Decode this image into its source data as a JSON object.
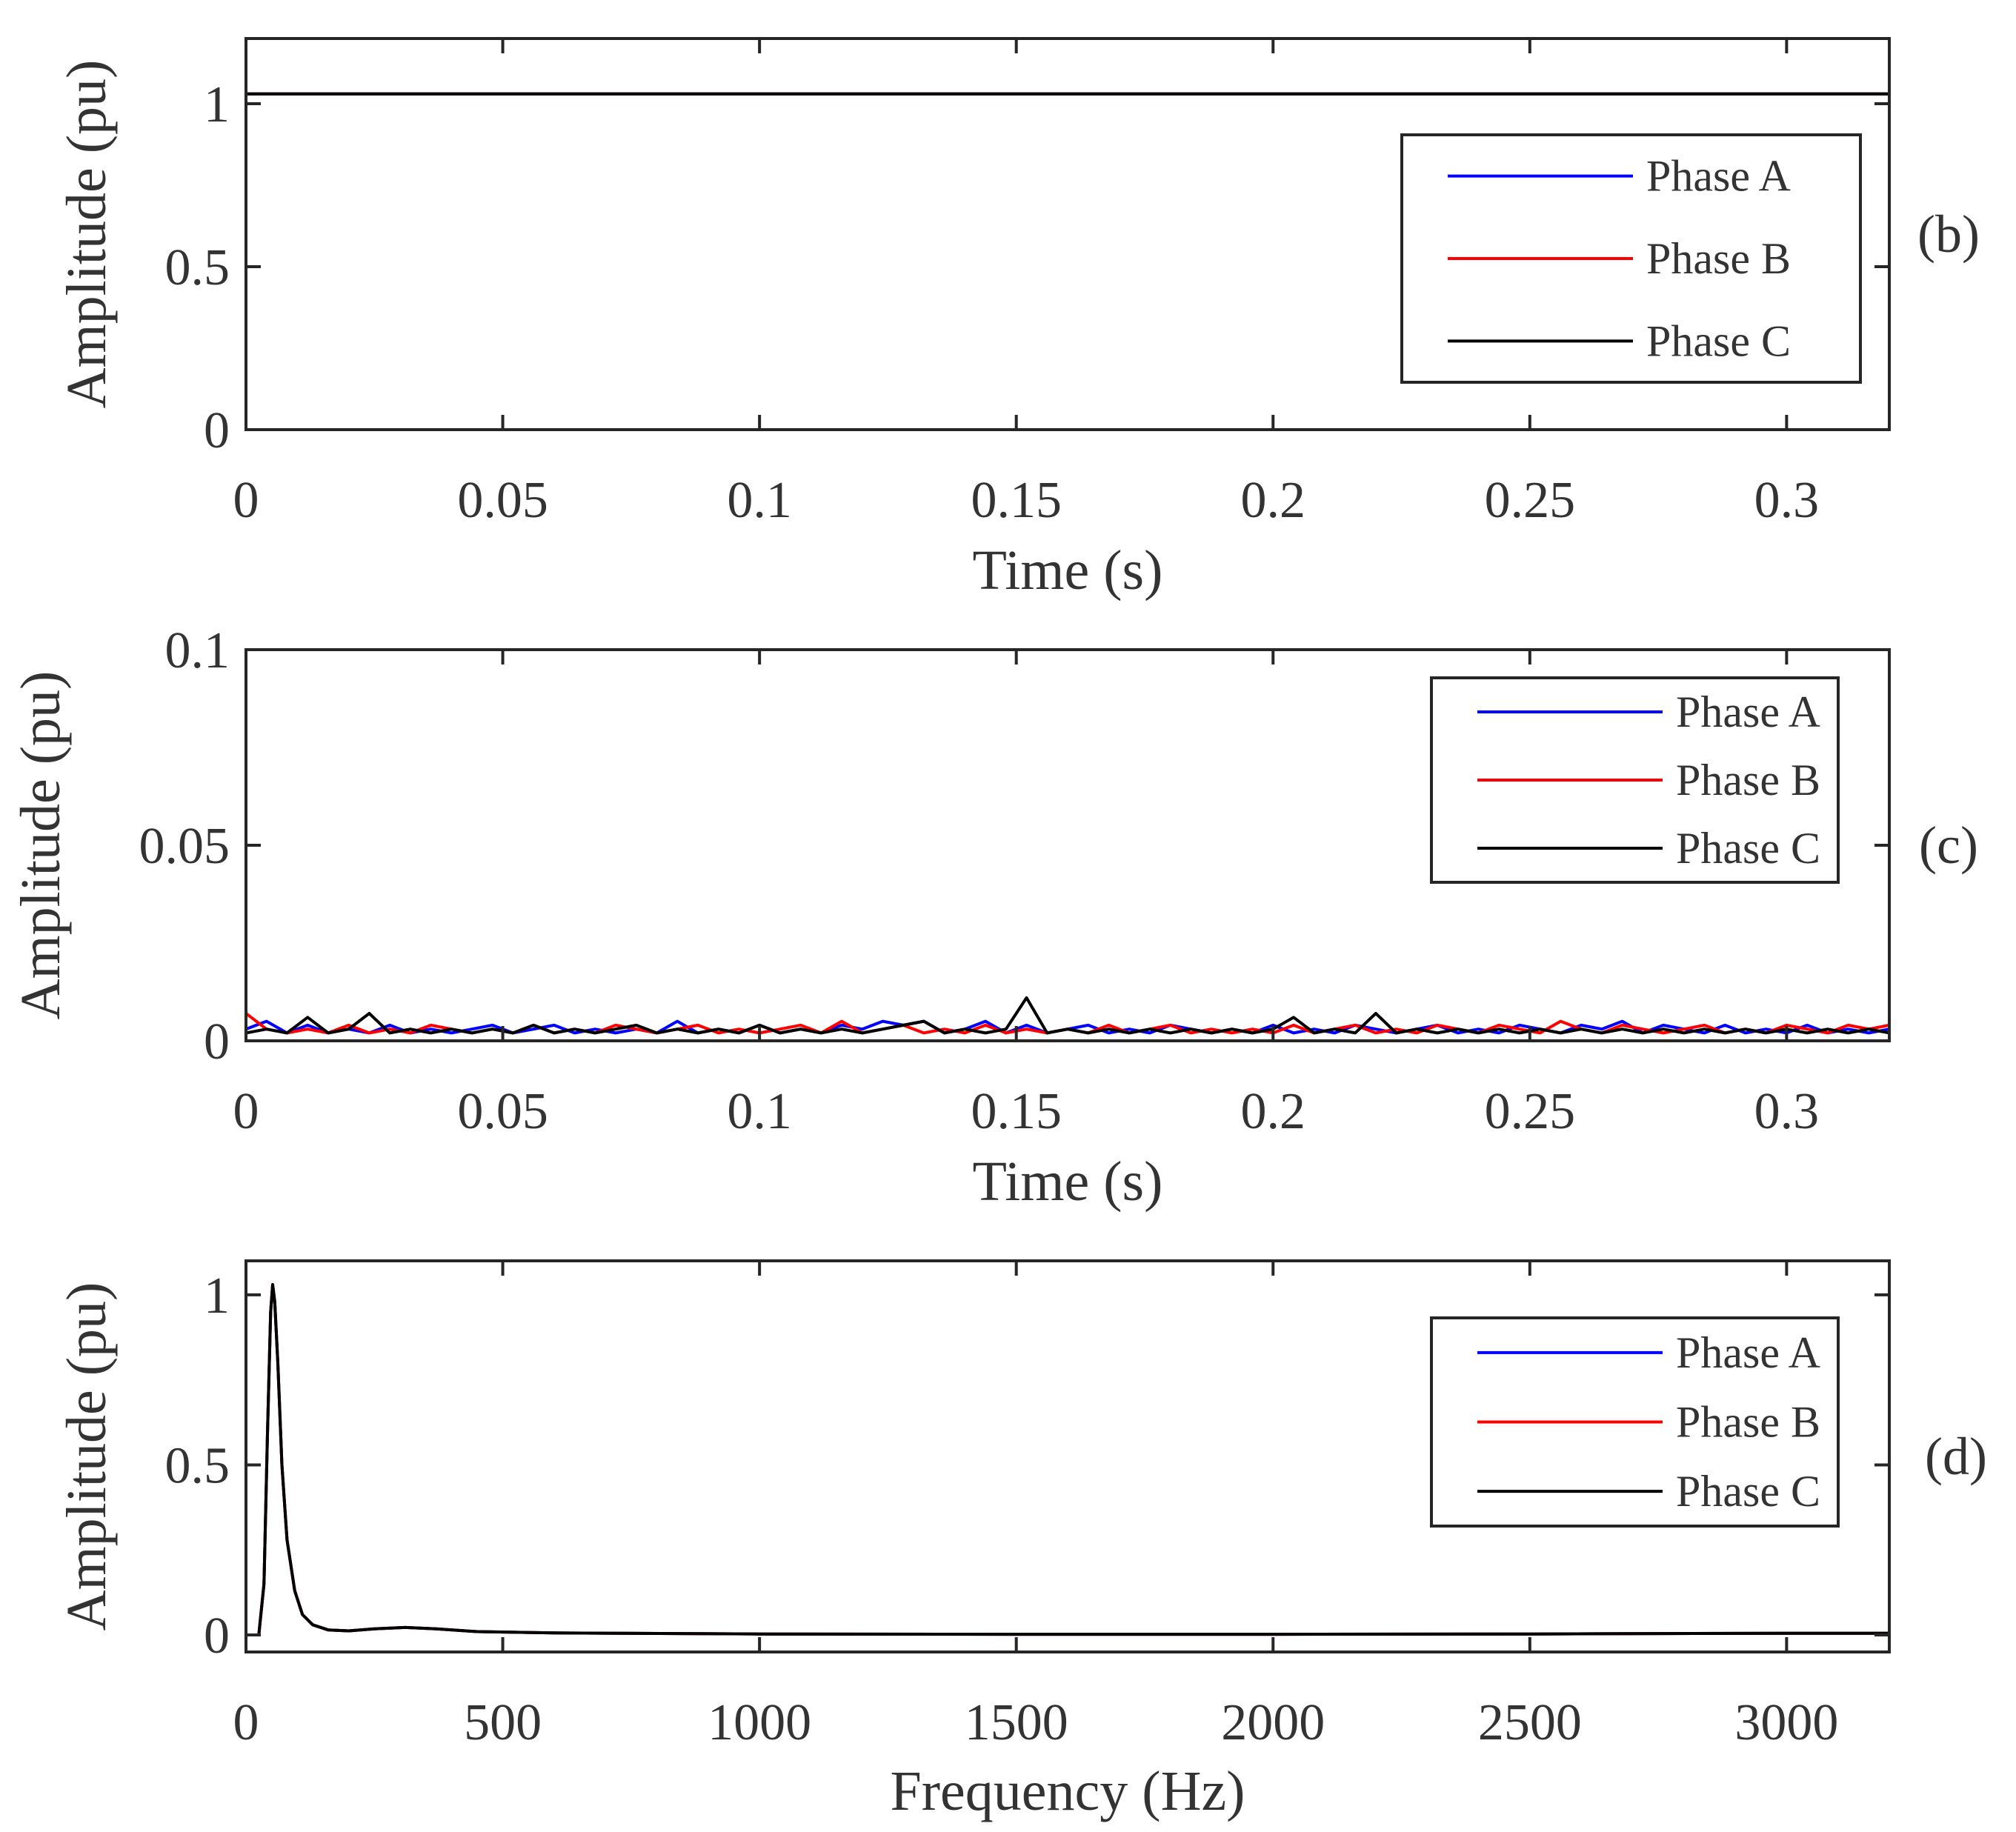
{
  "chart_data": [
    {
      "id": "b",
      "type": "line",
      "panel_label": "(b)",
      "xlabel": "Time (s)",
      "ylabel": "Amplitude (pu)",
      "xlim": [
        0,
        0.32
      ],
      "ylim": [
        0,
        1.2
      ],
      "xticks": [
        0,
        0.05,
        0.1,
        0.15,
        0.2,
        0.25,
        0.3
      ],
      "xtick_labels": [
        "0",
        "0.05",
        "0.1",
        "0.15",
        "0.2",
        "0.25",
        "0.3"
      ],
      "yticks": [
        0,
        0.5,
        1
      ],
      "ytick_labels": [
        "0",
        "0.5",
        "1"
      ],
      "legend_position": "right",
      "series": [
        {
          "name": "Phase A",
          "color": "#0000ff",
          "x": [
            0,
            0.32
          ],
          "values": [
            1.03,
            1.03
          ]
        },
        {
          "name": "Phase B",
          "color": "#ff0000",
          "x": [
            0,
            0.32
          ],
          "values": [
            1.03,
            1.03
          ]
        },
        {
          "name": "Phase C",
          "color": "#000000",
          "x": [
            0,
            0.32
          ],
          "values": [
            1.03,
            1.03
          ]
        }
      ]
    },
    {
      "id": "c",
      "type": "line",
      "panel_label": "(c)",
      "xlabel": "Time (s)",
      "ylabel": "Amplitude (pu)",
      "xlim": [
        0,
        0.32
      ],
      "ylim": [
        0,
        0.1
      ],
      "xticks": [
        0,
        0.05,
        0.1,
        0.15,
        0.2,
        0.25,
        0.3
      ],
      "xtick_labels": [
        "0",
        "0.05",
        "0.1",
        "0.15",
        "0.2",
        "0.25",
        "0.3"
      ],
      "yticks": [
        0,
        0.05,
        0.1
      ],
      "ytick_labels": [
        "0",
        "0.05",
        "0.1"
      ],
      "legend_position": "top-right",
      "series": [
        {
          "name": "Phase A",
          "color": "#0000ff",
          "x": [
            0,
            0.004,
            0.008,
            0.012,
            0.016,
            0.02,
            0.024,
            0.028,
            0.032,
            0.036,
            0.04,
            0.044,
            0.048,
            0.052,
            0.056,
            0.06,
            0.064,
            0.068,
            0.072,
            0.076,
            0.08,
            0.084,
            0.088,
            0.092,
            0.096,
            0.1,
            0.104,
            0.108,
            0.112,
            0.116,
            0.12,
            0.124,
            0.128,
            0.132,
            0.136,
            0.14,
            0.144,
            0.148,
            0.152,
            0.156,
            0.16,
            0.164,
            0.168,
            0.172,
            0.176,
            0.18,
            0.184,
            0.188,
            0.192,
            0.196,
            0.2,
            0.204,
            0.208,
            0.212,
            0.216,
            0.22,
            0.224,
            0.228,
            0.232,
            0.236,
            0.24,
            0.244,
            0.248,
            0.252,
            0.256,
            0.26,
            0.264,
            0.268,
            0.272,
            0.276,
            0.28,
            0.284,
            0.288,
            0.292,
            0.296,
            0.3,
            0.304,
            0.308,
            0.312,
            0.316,
            0.32
          ],
          "values": [
            0.003,
            0.005,
            0.002,
            0.004,
            0.002,
            0.003,
            0.002,
            0.004,
            0.002,
            0.003,
            0.002,
            0.003,
            0.004,
            0.002,
            0.003,
            0.004,
            0.002,
            0.003,
            0.002,
            0.003,
            0.002,
            0.005,
            0.002,
            0.003,
            0.002,
            0.004,
            0.002,
            0.003,
            0.002,
            0.004,
            0.003,
            0.005,
            0.004,
            0.005,
            0.002,
            0.003,
            0.005,
            0.002,
            0.004,
            0.002,
            0.003,
            0.004,
            0.002,
            0.003,
            0.002,
            0.004,
            0.003,
            0.002,
            0.003,
            0.002,
            0.004,
            0.002,
            0.003,
            0.002,
            0.004,
            0.003,
            0.002,
            0.003,
            0.004,
            0.002,
            0.003,
            0.002,
            0.004,
            0.003,
            0.002,
            0.004,
            0.003,
            0.005,
            0.002,
            0.004,
            0.003,
            0.002,
            0.004,
            0.002,
            0.003,
            0.002,
            0.004,
            0.002,
            0.003,
            0.002,
            0.003
          ]
        },
        {
          "name": "Phase B",
          "color": "#ff0000",
          "x": [
            0,
            0.004,
            0.008,
            0.012,
            0.016,
            0.02,
            0.024,
            0.028,
            0.032,
            0.036,
            0.04,
            0.044,
            0.048,
            0.052,
            0.056,
            0.06,
            0.064,
            0.068,
            0.072,
            0.076,
            0.08,
            0.084,
            0.088,
            0.092,
            0.096,
            0.1,
            0.104,
            0.108,
            0.112,
            0.116,
            0.12,
            0.124,
            0.128,
            0.132,
            0.136,
            0.14,
            0.144,
            0.148,
            0.152,
            0.156,
            0.16,
            0.164,
            0.168,
            0.172,
            0.176,
            0.18,
            0.184,
            0.188,
            0.192,
            0.196,
            0.2,
            0.204,
            0.208,
            0.212,
            0.216,
            0.22,
            0.224,
            0.228,
            0.232,
            0.236,
            0.24,
            0.244,
            0.248,
            0.252,
            0.256,
            0.26,
            0.264,
            0.268,
            0.272,
            0.276,
            0.28,
            0.284,
            0.288,
            0.292,
            0.296,
            0.3,
            0.304,
            0.308,
            0.312,
            0.316,
            0.32
          ],
          "values": [
            0.007,
            0.003,
            0.002,
            0.003,
            0.002,
            0.004,
            0.002,
            0.003,
            0.002,
            0.004,
            0.003,
            0.002,
            0.003,
            0.002,
            0.004,
            0.002,
            0.003,
            0.002,
            0.004,
            0.003,
            0.002,
            0.003,
            0.004,
            0.002,
            0.003,
            0.002,
            0.003,
            0.004,
            0.002,
            0.005,
            0.002,
            0.003,
            0.004,
            0.002,
            0.003,
            0.002,
            0.004,
            0.002,
            0.003,
            0.002,
            0.003,
            0.002,
            0.004,
            0.002,
            0.003,
            0.004,
            0.002,
            0.003,
            0.002,
            0.003,
            0.002,
            0.004,
            0.002,
            0.003,
            0.004,
            0.002,
            0.003,
            0.002,
            0.004,
            0.003,
            0.002,
            0.004,
            0.003,
            0.002,
            0.005,
            0.003,
            0.002,
            0.004,
            0.003,
            0.002,
            0.003,
            0.004,
            0.002,
            0.003,
            0.002,
            0.004,
            0.003,
            0.002,
            0.004,
            0.003,
            0.004
          ]
        },
        {
          "name": "Phase C",
          "color": "#000000",
          "x": [
            0,
            0.004,
            0.008,
            0.012,
            0.016,
            0.02,
            0.024,
            0.028,
            0.032,
            0.036,
            0.04,
            0.044,
            0.048,
            0.052,
            0.056,
            0.06,
            0.064,
            0.068,
            0.072,
            0.076,
            0.08,
            0.084,
            0.088,
            0.092,
            0.096,
            0.1,
            0.104,
            0.108,
            0.112,
            0.116,
            0.12,
            0.124,
            0.128,
            0.132,
            0.136,
            0.14,
            0.144,
            0.148,
            0.152,
            0.156,
            0.16,
            0.164,
            0.168,
            0.172,
            0.176,
            0.18,
            0.184,
            0.188,
            0.192,
            0.196,
            0.2,
            0.204,
            0.208,
            0.212,
            0.216,
            0.22,
            0.224,
            0.228,
            0.232,
            0.236,
            0.24,
            0.244,
            0.248,
            0.252,
            0.256,
            0.26,
            0.264,
            0.268,
            0.272,
            0.276,
            0.28,
            0.284,
            0.288,
            0.292,
            0.296,
            0.3,
            0.304,
            0.308,
            0.312,
            0.316,
            0.32
          ],
          "values": [
            0.002,
            0.003,
            0.002,
            0.006,
            0.002,
            0.003,
            0.007,
            0.002,
            0.003,
            0.002,
            0.003,
            0.002,
            0.003,
            0.002,
            0.004,
            0.002,
            0.003,
            0.002,
            0.003,
            0.004,
            0.002,
            0.003,
            0.002,
            0.003,
            0.002,
            0.004,
            0.002,
            0.003,
            0.002,
            0.003,
            0.002,
            0.003,
            0.004,
            0.005,
            0.002,
            0.003,
            0.002,
            0.003,
            0.011,
            0.002,
            0.003,
            0.002,
            0.003,
            0.002,
            0.003,
            0.002,
            0.003,
            0.002,
            0.003,
            0.002,
            0.003,
            0.006,
            0.002,
            0.003,
            0.002,
            0.007,
            0.002,
            0.003,
            0.002,
            0.003,
            0.002,
            0.003,
            0.002,
            0.003,
            0.002,
            0.003,
            0.002,
            0.003,
            0.002,
            0.003,
            0.002,
            0.003,
            0.002,
            0.003,
            0.002,
            0.003,
            0.002,
            0.003,
            0.002,
            0.003,
            0.002
          ]
        }
      ]
    },
    {
      "id": "d",
      "type": "line",
      "panel_label": "(d)",
      "xlabel": "Frequency (Hz)",
      "ylabel": "Amplitude (pu)",
      "xlim": [
        0,
        3200
      ],
      "ylim": [
        -0.05,
        1.1
      ],
      "xticks": [
        0,
        500,
        1000,
        1500,
        2000,
        2500,
        3000
      ],
      "xtick_labels": [
        "0",
        "500",
        "1000",
        "1500",
        "2000",
        "2500",
        "3000"
      ],
      "yticks": [
        0,
        0.5,
        1
      ],
      "ytick_labels": [
        "0",
        "0.5",
        "1"
      ],
      "legend_position": "right",
      "series": [
        {
          "name": "Phase A",
          "color": "#0000ff",
          "x": [
            0,
            25,
            35,
            42,
            48,
            52,
            56,
            62,
            70,
            80,
            95,
            110,
            130,
            160,
            200,
            250,
            310,
            370,
            450,
            600,
            1000,
            1500,
            2000,
            2500,
            3000,
            3200
          ],
          "values": [
            0.0,
            0.0,
            0.15,
            0.6,
            0.95,
            1.03,
            0.98,
            0.8,
            0.5,
            0.28,
            0.13,
            0.06,
            0.03,
            0.015,
            0.012,
            0.018,
            0.022,
            0.018,
            0.01,
            0.006,
            0.003,
            0.002,
            0.002,
            0.003,
            0.005,
            0.005
          ]
        },
        {
          "name": "Phase B",
          "color": "#ff0000",
          "x": [
            0,
            25,
            35,
            42,
            48,
            52,
            56,
            62,
            70,
            80,
            95,
            110,
            130,
            160,
            200,
            250,
            310,
            370,
            450,
            600,
            1000,
            1500,
            2000,
            2500,
            3000,
            3200
          ],
          "values": [
            0.0,
            0.0,
            0.15,
            0.6,
            0.95,
            1.03,
            0.98,
            0.8,
            0.5,
            0.28,
            0.13,
            0.06,
            0.03,
            0.015,
            0.012,
            0.018,
            0.022,
            0.018,
            0.01,
            0.006,
            0.003,
            0.002,
            0.002,
            0.003,
            0.005,
            0.005
          ]
        },
        {
          "name": "Phase C",
          "color": "#000000",
          "x": [
            0,
            25,
            35,
            42,
            48,
            52,
            56,
            62,
            70,
            80,
            95,
            110,
            130,
            160,
            200,
            250,
            310,
            370,
            450,
            600,
            1000,
            1500,
            2000,
            2500,
            3000,
            3200
          ],
          "values": [
            0.0,
            0.0,
            0.15,
            0.6,
            0.95,
            1.03,
            0.98,
            0.8,
            0.5,
            0.28,
            0.13,
            0.06,
            0.03,
            0.015,
            0.012,
            0.018,
            0.022,
            0.018,
            0.01,
            0.006,
            0.003,
            0.002,
            0.002,
            0.003,
            0.005,
            0.005
          ]
        }
      ]
    }
  ]
}
